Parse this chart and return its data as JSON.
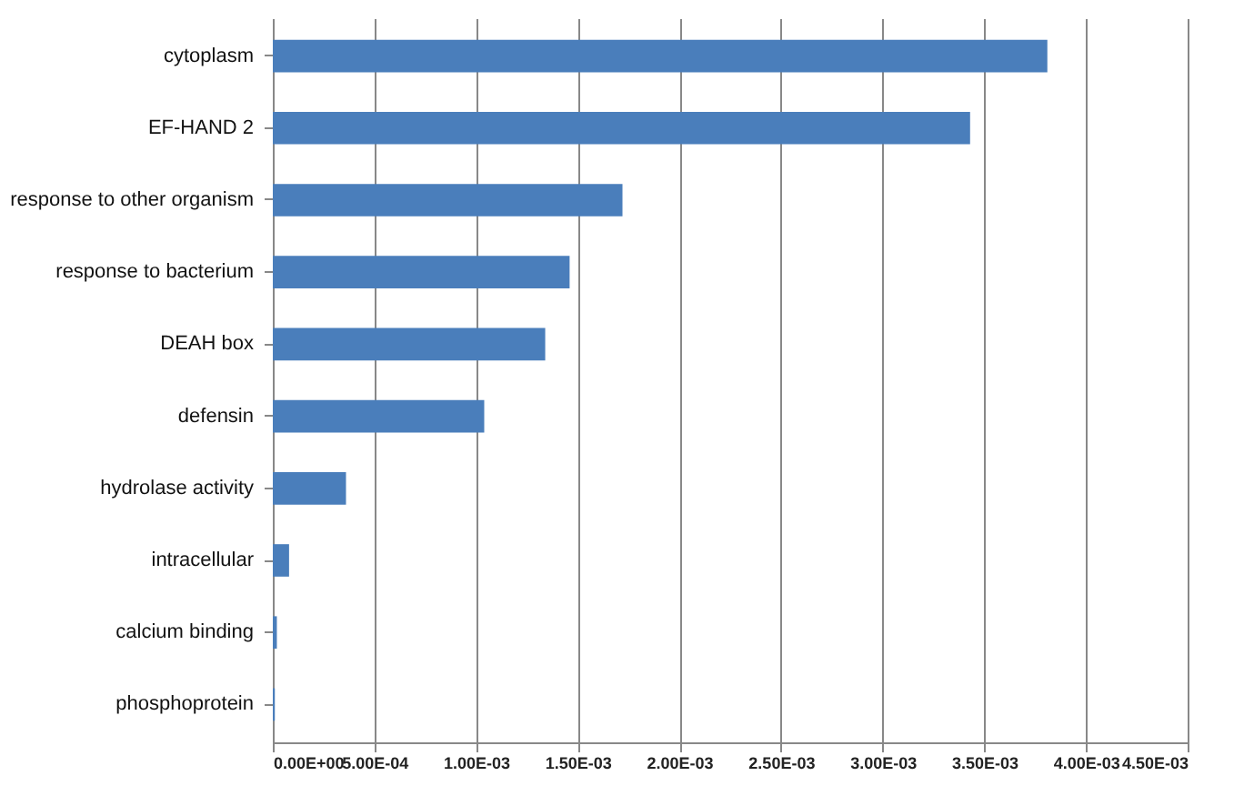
{
  "chart_data": {
    "type": "bar",
    "orientation": "horizontal",
    "categories": [
      "cytoplasm",
      "EF-HAND 2",
      "response to other organism",
      "response to bacterium",
      "DEAH box",
      "defensin",
      "hydrolase activity",
      "intracellular",
      "calcium binding",
      "phosphoprotein"
    ],
    "values": [
      0.00381,
      0.00343,
      0.00172,
      0.00146,
      0.00134,
      0.00104,
      0.00036,
      8e-05,
      2e-05,
      1e-05
    ],
    "color": "#4a7ebb",
    "xlim": [
      0,
      0.0045
    ],
    "xticks": [
      {
        "value": 0,
        "label": "0.00E+00"
      },
      {
        "value": 0.0005,
        "label": "5.00E-04"
      },
      {
        "value": 0.001,
        "label": "1.00E-03"
      },
      {
        "value": 0.0015,
        "label": "1.50E-03"
      },
      {
        "value": 0.002,
        "label": "2.00E-03"
      },
      {
        "value": 0.0025,
        "label": "2.50E-03"
      },
      {
        "value": 0.003,
        "label": "3.00E-03"
      },
      {
        "value": 0.0035,
        "label": "3.50E-03"
      },
      {
        "value": 0.004,
        "label": "4.00E-03"
      },
      {
        "value": 0.0045,
        "label": "4.50E-03"
      }
    ],
    "grid": "x"
  }
}
